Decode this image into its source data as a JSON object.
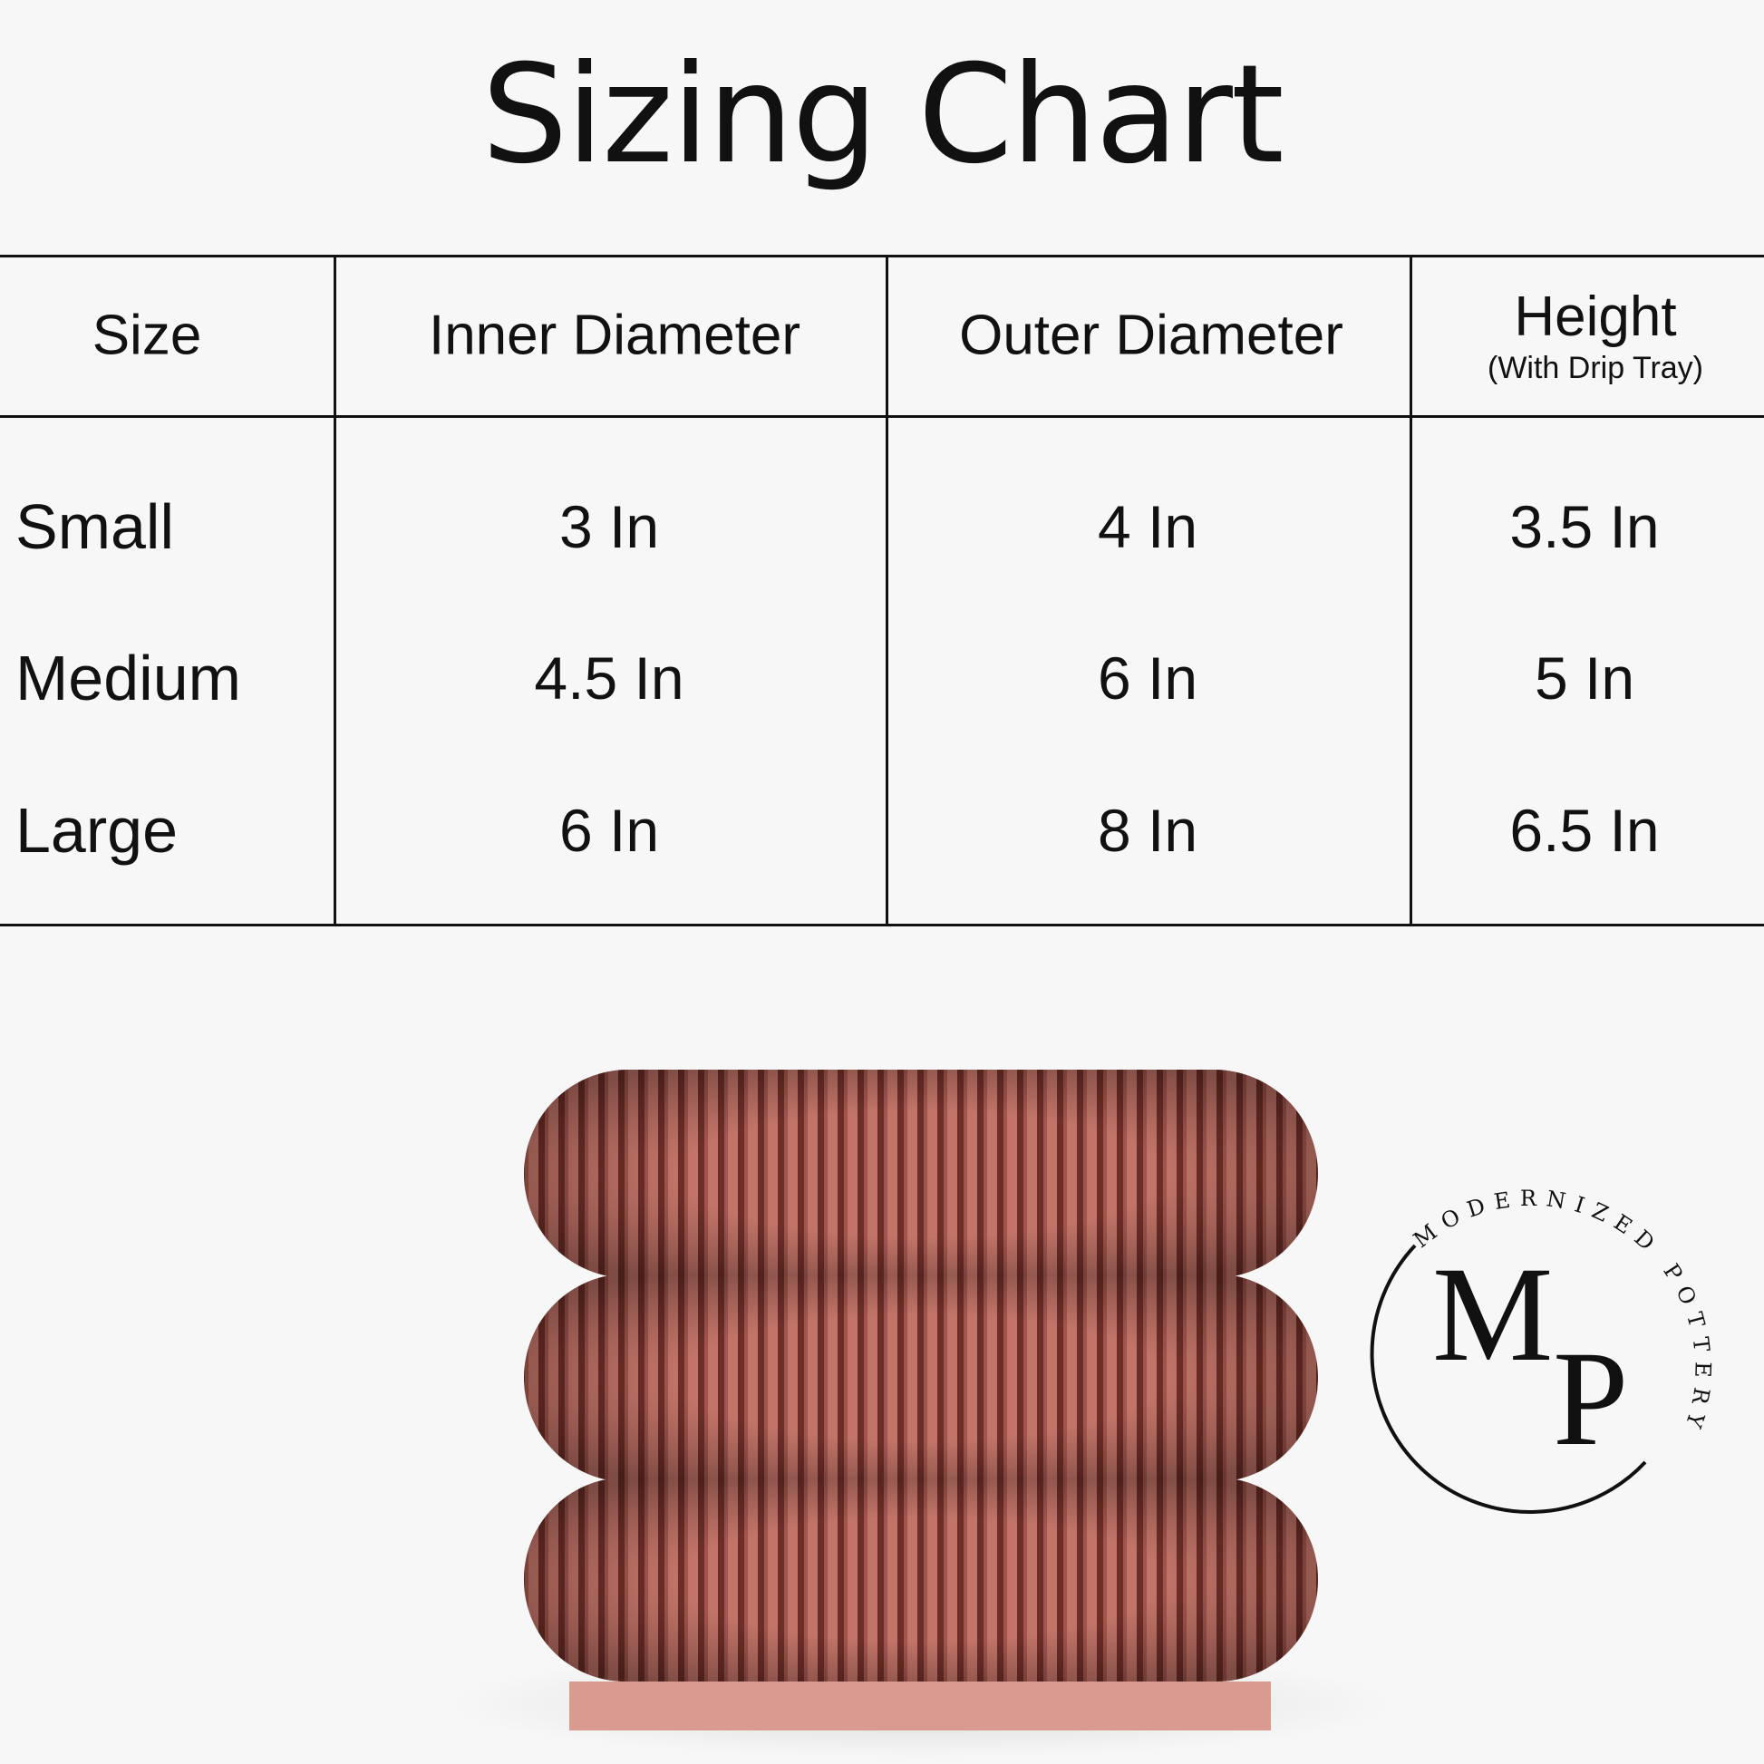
{
  "title": "Sizing Chart",
  "table": {
    "headers": [
      "Size",
      "Inner Diameter",
      "Outer Diameter",
      "Height"
    ],
    "height_note": "(With Drip Tray)",
    "rows": [
      {
        "size": "Small",
        "inner": "3 In",
        "outer": "4 In",
        "height": "3.5 In"
      },
      {
        "size": "Medium",
        "inner": "4.5 In",
        "outer": "6 In",
        "height": "5 In"
      },
      {
        "size": "Large",
        "inner": "6 In",
        "outer": "8 In",
        "height": "6.5 In"
      }
    ]
  },
  "logo": {
    "monogram": "MP",
    "ring_text": "MODERNIZED POTTERY"
  },
  "colors": {
    "product": "#b8665c",
    "tray": "#d99a90",
    "line": "#111111",
    "background": "#f7f7f7"
  }
}
